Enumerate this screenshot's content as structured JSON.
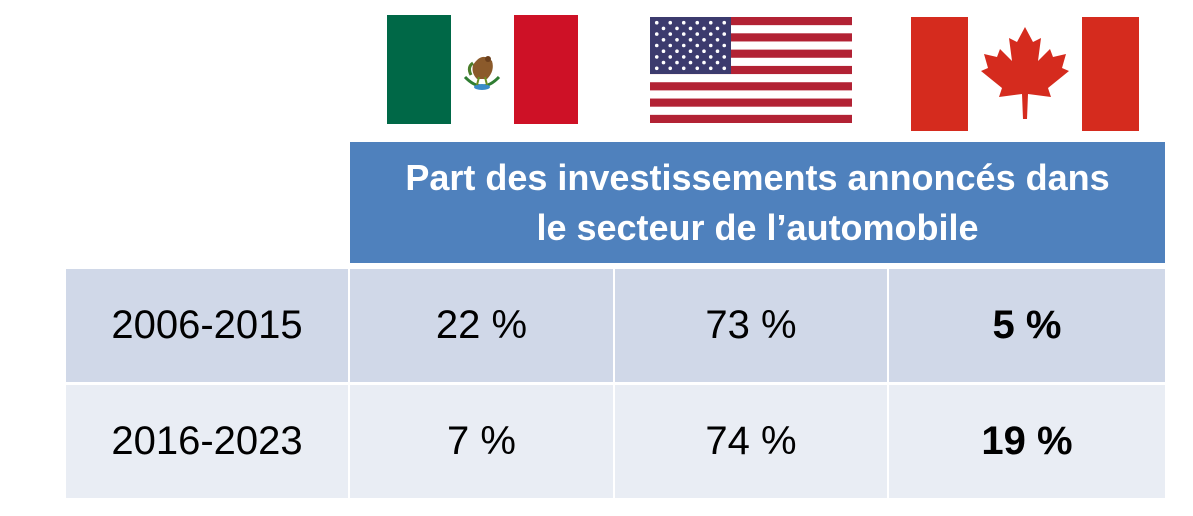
{
  "flags": [
    {
      "country": "Mexico",
      "icon": "mexico-flag-icon",
      "colors": {
        "green": "#006847",
        "white": "#ffffff",
        "red": "#ce1126"
      }
    },
    {
      "country": "United States",
      "icon": "us-flag-icon",
      "colors": {
        "red": "#b22234",
        "white": "#ffffff",
        "blue": "#3c3b6e"
      }
    },
    {
      "country": "Canada",
      "icon": "canada-flag-icon",
      "colors": {
        "red": "#d52b1e",
        "white": "#ffffff"
      }
    }
  ],
  "header": {
    "line1": "Part des investissements annoncés dans",
    "line2": "le secteur de l’automobile",
    "background": "#4f81bd"
  },
  "chart_data": {
    "type": "table",
    "title": "Part des investissements annoncés dans le secteur de l’automobile",
    "columns": [
      "Mexico",
      "United States",
      "Canada"
    ],
    "rows": [
      {
        "label": "2006-2015",
        "cells": [
          "22 %",
          "73 %",
          "5 %"
        ],
        "values": [
          22,
          73,
          5
        ]
      },
      {
        "label": "2016-2023",
        "cells": [
          "7 %",
          "74 %",
          "19 %"
        ],
        "values": [
          7,
          74,
          19
        ]
      }
    ],
    "highlighted_column": "Canada",
    "row_colors": [
      "#d0d8e8",
      "#e9edf4"
    ]
  }
}
